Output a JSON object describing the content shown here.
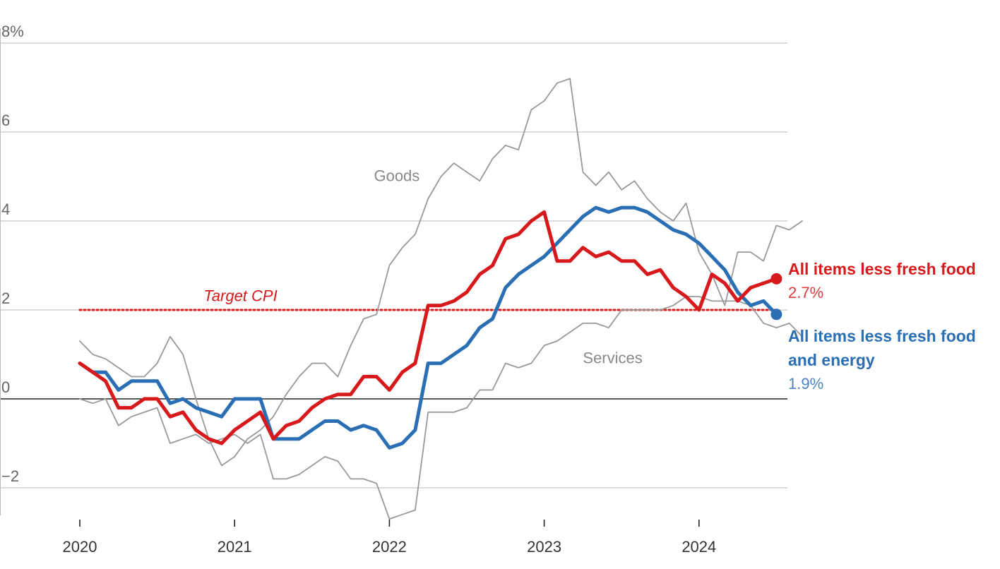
{
  "chart_data": {
    "type": "line",
    "ylim": [
      -2.6,
      8
    ],
    "y_ticks": [
      {
        "value": 8,
        "label": "8%"
      },
      {
        "value": 6,
        "label": "6"
      },
      {
        "value": 4,
        "label": "4"
      },
      {
        "value": 2,
        "label": "2"
      },
      {
        "value": 0,
        "label": "0"
      },
      {
        "value": -2,
        "label": "−2"
      }
    ],
    "x_ticks": [
      {
        "value": 2020.0,
        "label": "2020"
      },
      {
        "value": 2021.0,
        "label": "2021"
      },
      {
        "value": 2022.0,
        "label": "2022"
      },
      {
        "value": 2023.0,
        "label": "2023"
      },
      {
        "value": 2024.0,
        "label": "2024"
      }
    ],
    "xlim": [
      2019.5,
      2024.58
    ],
    "grid": true,
    "target": {
      "label": "Target CPI",
      "value": 2,
      "color": "#d7191c",
      "x_start": 2020.0,
      "x_end": 2024.5
    },
    "series": [
      {
        "key": "goods",
        "name": "Goods",
        "color": "#999999",
        "width": 1.8,
        "start": [
          2020,
          1
        ],
        "values": [
          1.3,
          1.0,
          0.9,
          0.7,
          0.5,
          0.5,
          0.8,
          1.4,
          1.0,
          0.0,
          -0.9,
          -1.5,
          -1.3,
          -0.9,
          -0.7,
          -0.4,
          0.1,
          0.5,
          0.8,
          0.8,
          0.5,
          1.2,
          1.8,
          1.9,
          3.0,
          3.4,
          3.7,
          4.5,
          5.0,
          5.3,
          5.1,
          4.9,
          5.4,
          5.7,
          5.6,
          6.5,
          6.7,
          7.1,
          7.2,
          5.1,
          4.8,
          5.1,
          4.7,
          4.9,
          4.5,
          4.2,
          4.0,
          4.4,
          3.3,
          2.8,
          2.1,
          3.3,
          3.3,
          3.1,
          3.9,
          3.8,
          4.0
        ]
      },
      {
        "key": "services",
        "name": "Services",
        "color": "#999999",
        "width": 1.8,
        "start": [
          2020,
          1
        ],
        "values": [
          0.0,
          -0.1,
          0.0,
          -0.6,
          -0.4,
          -0.3,
          -0.2,
          -1.0,
          -0.9,
          -0.8,
          -1.0,
          -0.9,
          -0.8,
          -1.0,
          -0.8,
          -1.8,
          -1.8,
          -1.7,
          -1.5,
          -1.3,
          -1.4,
          -1.8,
          -1.8,
          -1.9,
          -2.7,
          -2.6,
          -2.5,
          -0.3,
          -0.3,
          -0.3,
          -0.2,
          0.2,
          0.2,
          0.8,
          0.7,
          0.8,
          1.2,
          1.3,
          1.5,
          1.7,
          1.7,
          1.6,
          2.0,
          2.0,
          2.0,
          2.0,
          2.1,
          2.3,
          2.3,
          2.2,
          2.2,
          2.2,
          2.1,
          1.7,
          1.6,
          1.7,
          1.4
        ]
      },
      {
        "key": "core_core",
        "name": "All items less fresh food and energy",
        "color": "#2a6eb4",
        "width": 5,
        "start": [
          2020,
          1
        ],
        "values": [
          0.8,
          0.6,
          0.6,
          0.2,
          0.4,
          0.4,
          0.4,
          -0.1,
          0.0,
          -0.2,
          -0.3,
          -0.4,
          0.0,
          0.0,
          0.0,
          -0.9,
          -0.9,
          -0.9,
          -0.7,
          -0.5,
          -0.5,
          -0.7,
          -0.6,
          -0.7,
          -1.1,
          -1.0,
          -0.7,
          0.8,
          0.8,
          1.0,
          1.2,
          1.6,
          1.8,
          2.5,
          2.8,
          3.0,
          3.2,
          3.5,
          3.8,
          4.1,
          4.3,
          4.2,
          4.3,
          4.3,
          4.2,
          4.0,
          3.8,
          3.7,
          3.5,
          3.2,
          2.9,
          2.4,
          2.1,
          2.2,
          1.9
        ],
        "end_label": [
          "All items less fresh food",
          "and energy"
        ],
        "end_value": "1.9%"
      },
      {
        "key": "core",
        "name": "All items less fresh food",
        "color": "#d7191c",
        "width": 5,
        "start": [
          2020,
          1
        ],
        "values": [
          0.8,
          0.6,
          0.4,
          -0.2,
          -0.2,
          0.0,
          0.0,
          -0.4,
          -0.3,
          -0.7,
          -0.9,
          -1.0,
          -0.7,
          -0.5,
          -0.3,
          -0.9,
          -0.6,
          -0.5,
          -0.2,
          0.0,
          0.1,
          0.1,
          0.5,
          0.5,
          0.2,
          0.6,
          0.8,
          2.1,
          2.1,
          2.2,
          2.4,
          2.8,
          3.0,
          3.6,
          3.7,
          4.0,
          4.2,
          3.1,
          3.1,
          3.4,
          3.2,
          3.3,
          3.1,
          3.1,
          2.8,
          2.9,
          2.5,
          2.3,
          2.0,
          2.8,
          2.6,
          2.2,
          2.5,
          2.6,
          2.7
        ],
        "end_label": [
          "All items less fresh food"
        ],
        "end_value": "2.7%"
      }
    ],
    "annotations": [
      {
        "text": "Goods",
        "x": 2021.9,
        "y": 4.9,
        "color": "#888888"
      },
      {
        "text": "Services",
        "x": 2023.25,
        "y": 0.8,
        "color": "#888888"
      },
      {
        "text": "Target CPI",
        "x": 2020.8,
        "y": 2.2,
        "color": "#d7191c",
        "italic": true
      }
    ]
  }
}
